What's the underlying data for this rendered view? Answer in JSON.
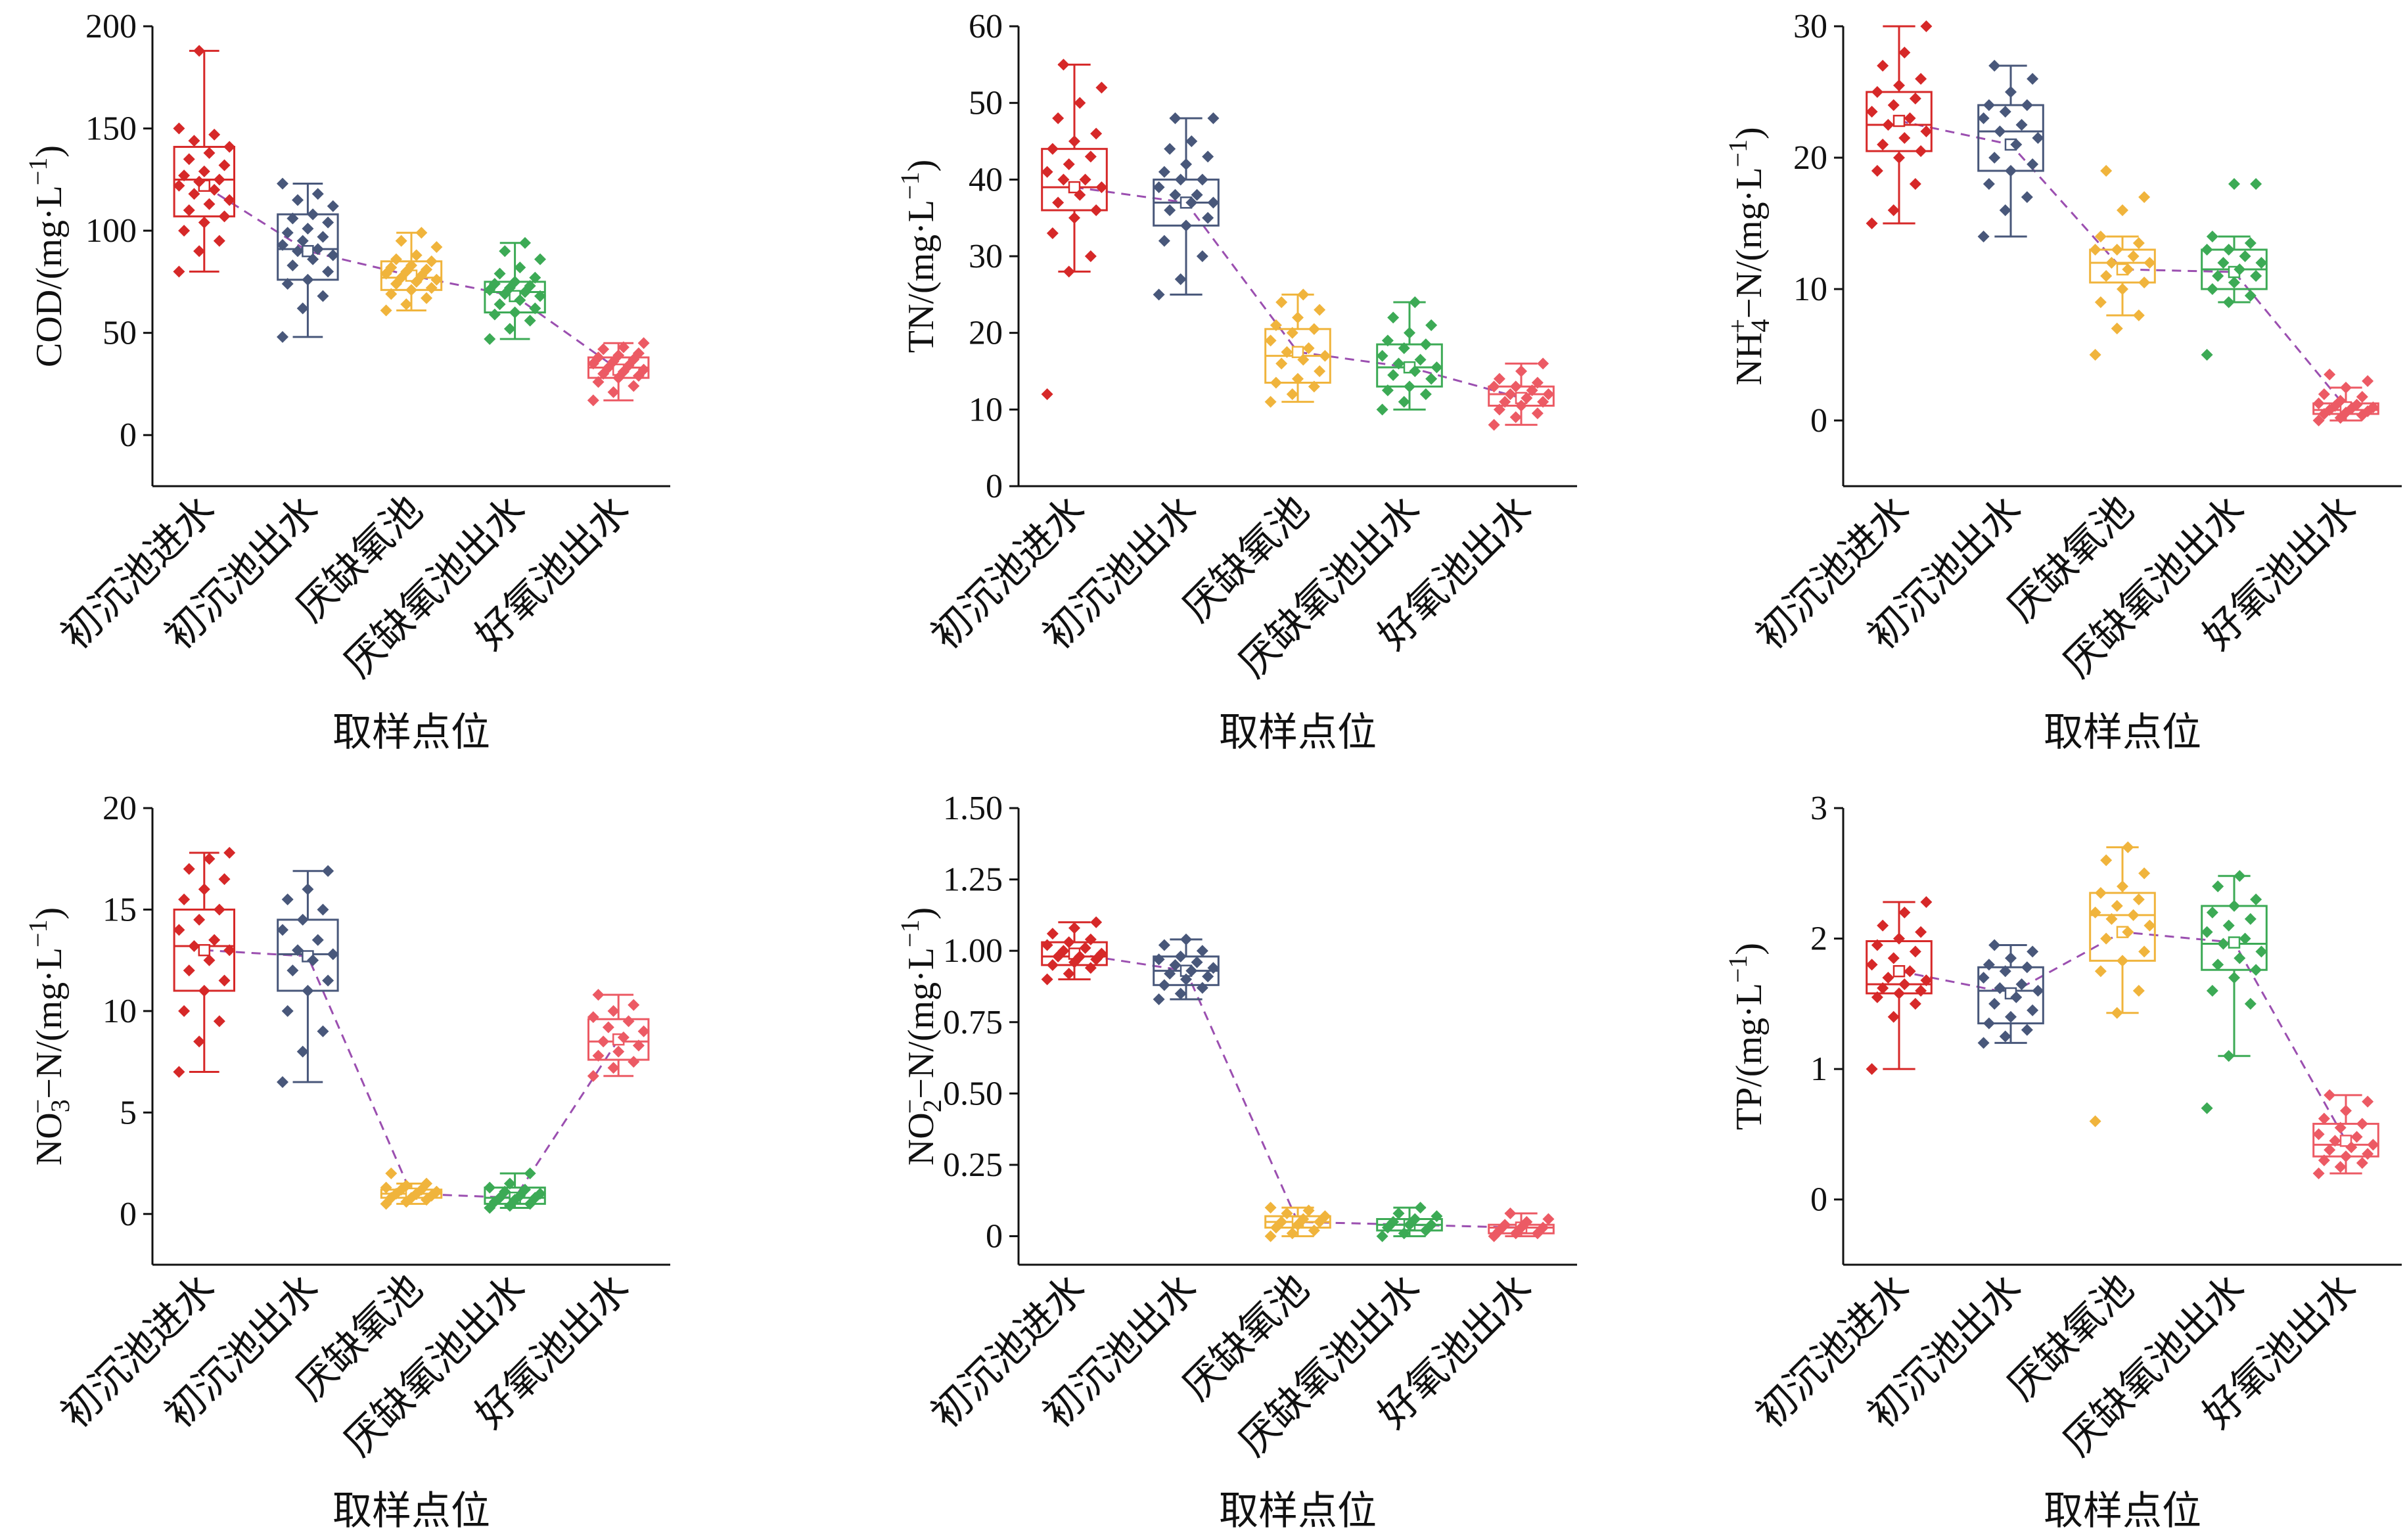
{
  "colors": [
    "#d62828",
    "#48577a",
    "#f0b43c",
    "#3caa55",
    "#ec5a64"
  ],
  "trend_color": "#9b4fb0",
  "chart_data": [
    {
      "type": "box",
      "ylabel_parts": {
        "pre": "COD/(mg·L",
        "sup": "−1",
        "post": ")"
      },
      "xlabel": "取样点位",
      "categories": [
        "初沉池进水",
        "初沉池出水",
        "厌缺氧池",
        "厌缺氧池出水",
        "好氧池出水"
      ],
      "ylim": [
        -25,
        200
      ],
      "yticks": [
        0,
        50,
        100,
        150,
        200
      ],
      "yticklabels": [
        "0",
        "50",
        "100",
        "150",
        "200"
      ],
      "boxes": [
        {
          "min": 80,
          "q1": 107,
          "median": 125,
          "q3": 141,
          "max": 188,
          "mean": 122
        },
        {
          "min": 48,
          "q1": 76,
          "median": 91,
          "q3": 108,
          "max": 123,
          "mean": 90
        },
        {
          "min": 61,
          "q1": 71,
          "median": 77,
          "q3": 85,
          "max": 99,
          "mean": 78
        },
        {
          "min": 47,
          "q1": 60,
          "median": 70,
          "q3": 75,
          "max": 94,
          "mean": 68
        },
        {
          "min": 17,
          "q1": 28,
          "median": 33,
          "q3": 38,
          "max": 45,
          "mean": 32
        }
      ],
      "points": [
        [
          80,
          90,
          95,
          100,
          104,
          107,
          110,
          113,
          115,
          118,
          120,
          122,
          124,
          125,
          127,
          129,
          132,
          135,
          138,
          141,
          144,
          147,
          150,
          188
        ],
        [
          48,
          62,
          68,
          74,
          76,
          80,
          83,
          86,
          88,
          90,
          91,
          93,
          95,
          97,
          99,
          101,
          104,
          106,
          108,
          112,
          115,
          118,
          123
        ],
        [
          61,
          64,
          67,
          69,
          71,
          72,
          74,
          75,
          76,
          77,
          78,
          79,
          80,
          81,
          82,
          83,
          85,
          86,
          88,
          92,
          95,
          99
        ],
        [
          47,
          52,
          56,
          59,
          60,
          62,
          64,
          66,
          68,
          69,
          70,
          71,
          72,
          73,
          74,
          75,
          77,
          79,
          82,
          86,
          90,
          94
        ],
        [
          17,
          21,
          24,
          26,
          28,
          29,
          30,
          31,
          32,
          33,
          34,
          35,
          36,
          37,
          38,
          39,
          40,
          42,
          43,
          45
        ]
      ]
    },
    {
      "type": "box",
      "ylabel_parts": {
        "pre": "TN/(mg·L",
        "sup": "−1",
        "post": ")"
      },
      "xlabel": "取样点位",
      "categories": [
        "初沉池进水",
        "初沉池出水",
        "厌缺氧池",
        "厌缺氧池出水",
        "好氧池出水"
      ],
      "ylim": [
        0,
        60
      ],
      "yticks": [
        0,
        10,
        20,
        30,
        40,
        50,
        60
      ],
      "yticklabels": [
        "0",
        "10",
        "20",
        "30",
        "40",
        "50",
        "60"
      ],
      "boxes": [
        {
          "min": 28,
          "q1": 36,
          "median": 39,
          "q3": 44,
          "max": 55,
          "mean": 39
        },
        {
          "min": 25,
          "q1": 34,
          "median": 37,
          "q3": 40,
          "max": 48,
          "mean": 37
        },
        {
          "min": 11,
          "q1": 13.5,
          "median": 17,
          "q3": 20.5,
          "max": 25,
          "mean": 17.5
        },
        {
          "min": 10,
          "q1": 13,
          "median": 15.5,
          "q3": 18.5,
          "max": 24,
          "mean": 15.5
        },
        {
          "min": 8,
          "q1": 10.5,
          "median": 12,
          "q3": 13,
          "max": 16,
          "mean": 11.5
        }
      ],
      "points": [
        [
          12,
          28,
          30,
          33,
          35,
          36,
          37,
          38,
          39,
          40,
          40,
          41,
          42,
          43,
          44,
          45,
          46,
          48,
          50,
          52,
          55
        ],
        [
          25,
          27,
          30,
          32,
          34,
          35,
          36,
          37,
          37,
          38,
          38,
          39,
          40,
          40,
          41,
          42,
          43,
          44,
          45,
          48,
          48
        ],
        [
          11,
          12,
          13,
          13.5,
          14,
          15,
          16,
          16.5,
          17,
          17.5,
          18,
          19,
          20,
          20.5,
          21,
          22,
          23,
          24,
          25
        ],
        [
          10,
          11,
          12,
          12.5,
          13,
          14,
          14.5,
          15,
          15.5,
          16,
          16.5,
          17,
          18,
          18.5,
          19,
          20,
          21,
          22,
          24
        ],
        [
          8,
          9,
          9.5,
          10,
          10.5,
          11,
          11,
          11.5,
          12,
          12,
          12.5,
          13,
          13,
          13.5,
          14,
          15,
          16
        ]
      ]
    },
    {
      "type": "box",
      "ylabel_parts": {
        "pre": "NH",
        "sub": "4",
        "sup2": "+",
        "mid": "−N/(mg·L",
        "sup": "−1",
        "post": ")"
      },
      "xlabel": "取样点位",
      "categories": [
        "初沉池进水",
        "初沉池出水",
        "厌缺氧池",
        "厌缺氧池出水",
        "好氧池出水"
      ],
      "ylim": [
        -5,
        30
      ],
      "yticks": [
        0,
        10,
        20,
        30
      ],
      "yticklabels": [
        "0",
        "10",
        "20",
        "30"
      ],
      "boxes": [
        {
          "min": 15,
          "q1": 20.5,
          "median": 22.5,
          "q3": 25,
          "max": 30,
          "mean": 22.8
        },
        {
          "min": 14,
          "q1": 19,
          "median": 22,
          "q3": 24,
          "max": 27,
          "mean": 21
        },
        {
          "min": 8,
          "q1": 10.5,
          "median": 12,
          "q3": 13,
          "max": 14,
          "mean": 11.5
        },
        {
          "min": 9,
          "q1": 10,
          "median": 11.5,
          "q3": 13,
          "max": 14,
          "mean": 11.3
        },
        {
          "min": 0,
          "q1": 0.5,
          "median": 0.8,
          "q3": 1.3,
          "max": 2.5,
          "mean": 1
        }
      ],
      "points": [
        [
          15,
          16,
          18,
          19,
          20,
          20.5,
          21,
          21.5,
          22,
          22.5,
          23,
          23.5,
          24,
          24.5,
          25,
          25.5,
          26,
          27,
          28,
          30
        ],
        [
          14,
          16,
          17,
          18,
          19,
          19.5,
          20,
          21,
          21.5,
          22,
          22.5,
          23,
          23.5,
          24,
          24,
          25,
          26,
          27
        ],
        [
          5,
          7,
          8,
          9,
          10,
          10.5,
          11,
          11.5,
          12,
          12,
          12.5,
          13,
          13,
          13.5,
          14,
          16,
          17,
          19
        ],
        [
          5,
          9,
          9.5,
          10,
          10.5,
          11,
          11,
          11.5,
          12,
          12,
          12.5,
          13,
          13,
          13.5,
          14,
          18,
          18
        ],
        [
          0,
          0.2,
          0.4,
          0.5,
          0.6,
          0.7,
          0.8,
          0.9,
          1,
          1.1,
          1.2,
          1.3,
          1.5,
          1.8,
          2,
          2.5,
          3,
          3.5
        ]
      ]
    },
    {
      "type": "box",
      "ylabel_parts": {
        "pre": "NO",
        "sub": "3",
        "sup2": "−",
        "mid": "−N/(mg·L",
        "sup": "−1",
        "post": ")"
      },
      "xlabel": "取样点位",
      "categories": [
        "初沉池进水",
        "初沉池出水",
        "厌缺氧池",
        "厌缺氧池出水",
        "好氧池出水"
      ],
      "ylim": [
        -2.5,
        20
      ],
      "yticks": [
        0,
        5,
        10,
        15,
        20
      ],
      "yticklabels": [
        "0",
        "5",
        "10",
        "15",
        "20"
      ],
      "boxes": [
        {
          "min": 7,
          "q1": 11,
          "median": 13.2,
          "q3": 15,
          "max": 17.8,
          "mean": 13
        },
        {
          "min": 6.5,
          "q1": 11,
          "median": 12.8,
          "q3": 14.5,
          "max": 16.9,
          "mean": 12.7
        },
        {
          "min": 0.5,
          "q1": 0.8,
          "median": 1,
          "q3": 1.2,
          "max": 1.5,
          "mean": 1
        },
        {
          "min": 0.3,
          "q1": 0.5,
          "median": 0.8,
          "q3": 1.3,
          "max": 2,
          "mean": 0.8
        },
        {
          "min": 6.8,
          "q1": 7.6,
          "median": 8.5,
          "q3": 9.6,
          "max": 10.8,
          "mean": 8.6
        }
      ],
      "points": [
        [
          7,
          8.5,
          9.5,
          10,
          11,
          11.5,
          12,
          12.5,
          13,
          13.2,
          13.5,
          14,
          14.5,
          15,
          15.5,
          16,
          16.5,
          17,
          17.5,
          17.8
        ],
        [
          6.5,
          8,
          9,
          10,
          11,
          11.5,
          12,
          12.5,
          12.8,
          13,
          13.5,
          14,
          14.5,
          15,
          15.5,
          16,
          16.9
        ],
        [
          0.5,
          0.6,
          0.7,
          0.8,
          0.8,
          0.9,
          1,
          1,
          1.1,
          1.2,
          1.2,
          1.3,
          1.4,
          1.5,
          2
        ],
        [
          0.3,
          0.4,
          0.5,
          0.6,
          0.7,
          0.8,
          0.8,
          0.9,
          1,
          1.1,
          1.2,
          1.3,
          1.5,
          2
        ],
        [
          6.8,
          7.2,
          7.5,
          7.8,
          8,
          8.3,
          8.5,
          8.7,
          9,
          9.2,
          9.5,
          9.7,
          10,
          10.3,
          10.8
        ]
      ]
    },
    {
      "type": "box",
      "ylabel_parts": {
        "pre": "NO",
        "sub": "2",
        "sup2": "−",
        "mid": "−N/(mg·L",
        "sup": "−1",
        "post": ")"
      },
      "xlabel": "取样点位",
      "categories": [
        "初沉池进水",
        "初沉池出水",
        "厌缺氧池",
        "厌缺氧池出水",
        "好氧池出水"
      ],
      "ylim": [
        -0.1,
        1.5
      ],
      "yticks": [
        0,
        0.25,
        0.5,
        0.75,
        1.0,
        1.25,
        1.5
      ],
      "yticklabels": [
        "0",
        "0.25",
        "0.50",
        "0.75",
        "1.00",
        "1.25",
        "1.50"
      ],
      "boxes": [
        {
          "min": 0.9,
          "q1": 0.95,
          "median": 0.98,
          "q3": 1.03,
          "max": 1.1,
          "mean": 0.99
        },
        {
          "min": 0.83,
          "q1": 0.88,
          "median": 0.93,
          "q3": 0.98,
          "max": 1.04,
          "mean": 0.93
        },
        {
          "min": 0.0,
          "q1": 0.03,
          "median": 0.05,
          "q3": 0.07,
          "max": 0.1,
          "mean": 0.05
        },
        {
          "min": 0.0,
          "q1": 0.02,
          "median": 0.04,
          "q3": 0.06,
          "max": 0.1,
          "mean": 0.04
        },
        {
          "min": 0.0,
          "q1": 0.01,
          "median": 0.03,
          "q3": 0.04,
          "max": 0.08,
          "mean": 0.03
        }
      ],
      "points": [
        [
          0.9,
          0.92,
          0.94,
          0.95,
          0.96,
          0.97,
          0.98,
          0.98,
          0.99,
          1.0,
          1.01,
          1.02,
          1.03,
          1.04,
          1.06,
          1.08,
          1.1
        ],
        [
          0.83,
          0.85,
          0.87,
          0.88,
          0.9,
          0.91,
          0.92,
          0.93,
          0.94,
          0.95,
          0.96,
          0.97,
          0.98,
          1.0,
          1.02,
          1.04
        ],
        [
          0.0,
          0.01,
          0.02,
          0.03,
          0.04,
          0.05,
          0.05,
          0.06,
          0.07,
          0.08,
          0.09,
          0.1
        ],
        [
          0.0,
          0.01,
          0.02,
          0.03,
          0.04,
          0.04,
          0.05,
          0.06,
          0.07,
          0.08,
          0.1
        ],
        [
          0.0,
          0.01,
          0.01,
          0.02,
          0.03,
          0.03,
          0.04,
          0.05,
          0.06,
          0.08
        ]
      ]
    },
    {
      "type": "box",
      "ylabel_parts": {
        "pre": "TP/(mg·L",
        "sup": "−1",
        "post": ")"
      },
      "xlabel": "取样点位",
      "categories": [
        "初沉池进水",
        "初沉池出水",
        "厌缺氧池",
        "厌缺氧池出水",
        "好氧池出水"
      ],
      "ylim": [
        -0.5,
        3
      ],
      "yticks": [
        0,
        1,
        2,
        3
      ],
      "yticklabels": [
        "0",
        "1",
        "2",
        "3"
      ],
      "boxes": [
        {
          "min": 1.0,
          "q1": 1.58,
          "median": 1.65,
          "q3": 1.98,
          "max": 2.28,
          "mean": 1.75
        },
        {
          "min": 1.2,
          "q1": 1.35,
          "median": 1.6,
          "q3": 1.78,
          "max": 1.95,
          "mean": 1.58
        },
        {
          "min": 1.43,
          "q1": 1.83,
          "median": 2.18,
          "q3": 2.35,
          "max": 2.7,
          "mean": 2.05
        },
        {
          "min": 1.1,
          "q1": 1.76,
          "median": 1.96,
          "q3": 2.25,
          "max": 2.48,
          "mean": 1.97
        },
        {
          "min": 0.2,
          "q1": 0.33,
          "median": 0.42,
          "q3": 0.58,
          "max": 0.8,
          "mean": 0.45
        }
      ],
      "points": [
        [
          1.0,
          1.4,
          1.5,
          1.55,
          1.58,
          1.6,
          1.62,
          1.65,
          1.68,
          1.7,
          1.75,
          1.8,
          1.85,
          1.9,
          1.95,
          2.0,
          2.05,
          2.1,
          2.2,
          2.28
        ],
        [
          1.2,
          1.25,
          1.3,
          1.35,
          1.4,
          1.45,
          1.5,
          1.55,
          1.6,
          1.62,
          1.65,
          1.7,
          1.75,
          1.78,
          1.8,
          1.85,
          1.9,
          1.95
        ],
        [
          0.6,
          1.43,
          1.6,
          1.75,
          1.83,
          1.9,
          2.0,
          2.05,
          2.1,
          2.15,
          2.18,
          2.2,
          2.25,
          2.3,
          2.35,
          2.4,
          2.5,
          2.6,
          2.7
        ],
        [
          0.7,
          1.1,
          1.5,
          1.6,
          1.7,
          1.76,
          1.8,
          1.85,
          1.9,
          1.96,
          2.0,
          2.05,
          2.1,
          2.15,
          2.2,
          2.25,
          2.3,
          2.4,
          2.48
        ],
        [
          0.2,
          0.25,
          0.28,
          0.3,
          0.33,
          0.35,
          0.38,
          0.4,
          0.42,
          0.45,
          0.48,
          0.5,
          0.55,
          0.58,
          0.62,
          0.68,
          0.75,
          0.8
        ]
      ]
    }
  ]
}
